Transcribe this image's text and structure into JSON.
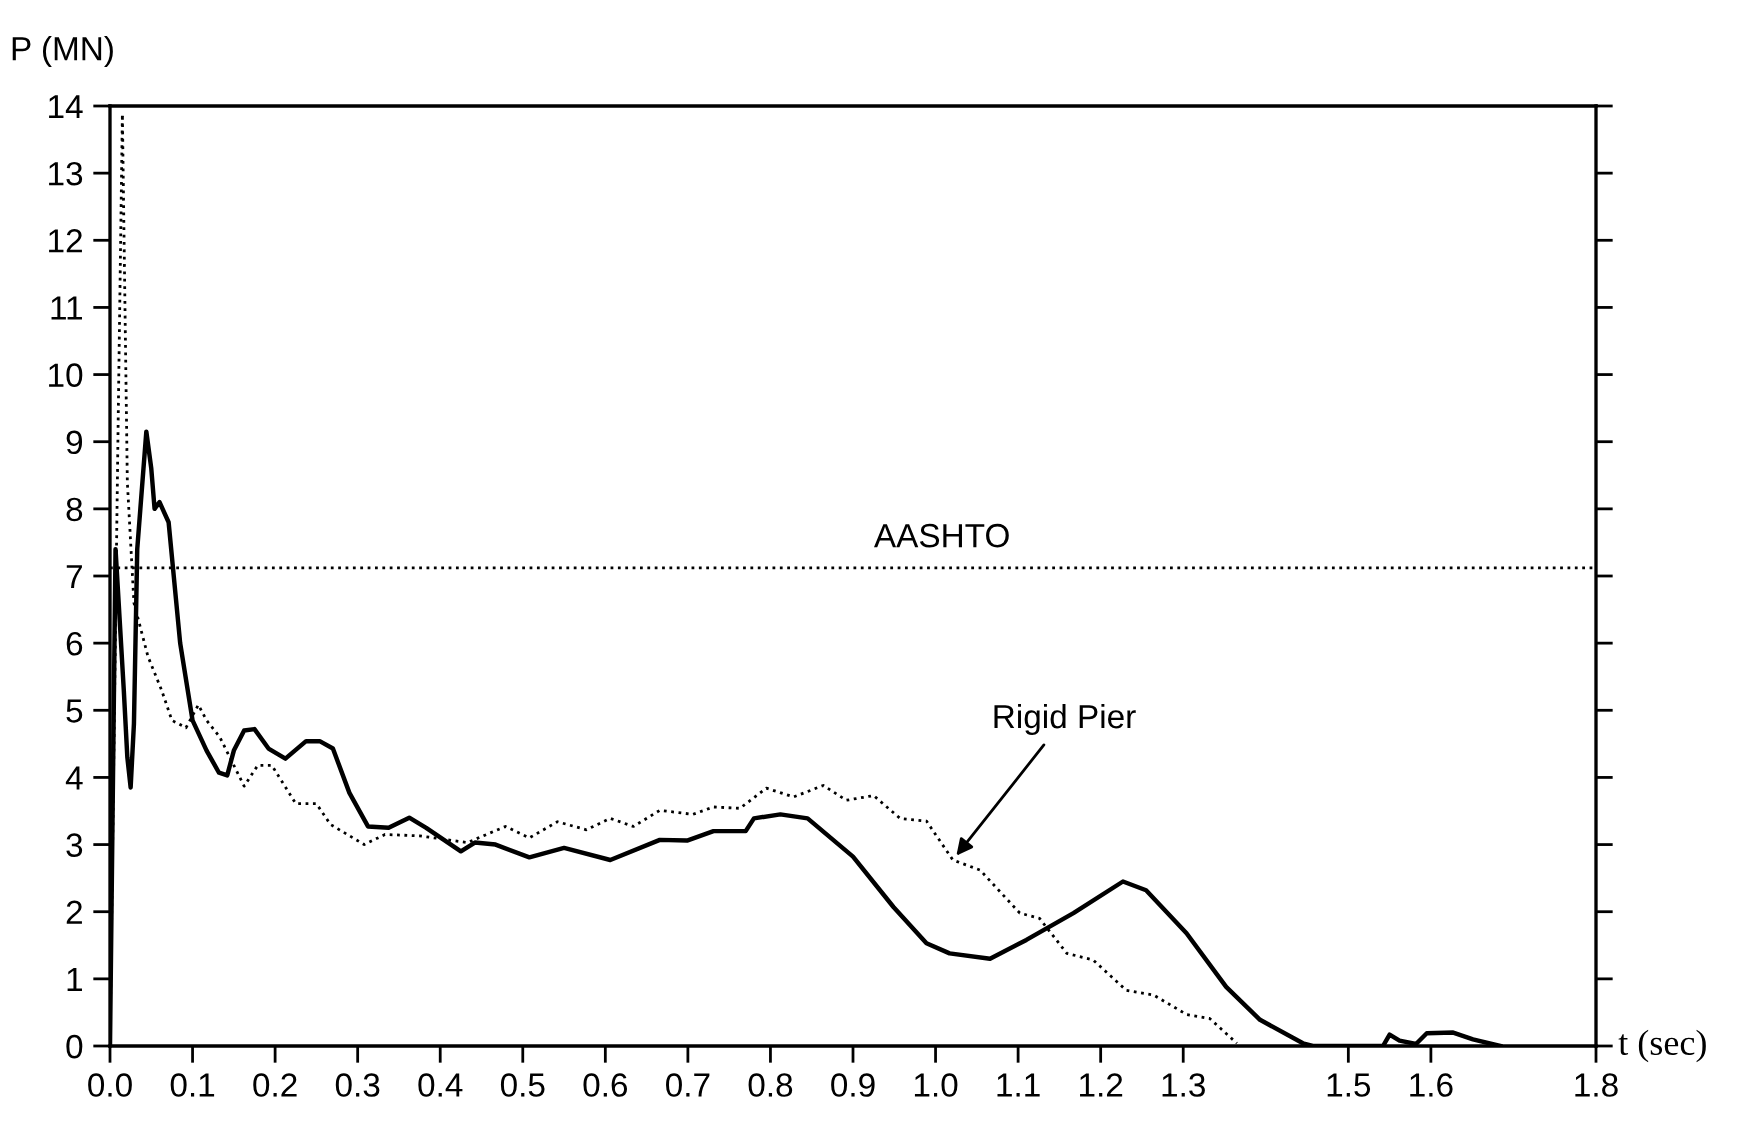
{
  "chart_data": {
    "type": "line",
    "xlabel": "t (sec)",
    "ylabel": "P (MN)",
    "xlim": [
      0,
      1.8
    ],
    "ylim": [
      0,
      14
    ],
    "xticks": [
      {
        "value": 0,
        "label": "0.0"
      },
      0.1,
      0.2,
      0.3,
      0.4,
      0.5,
      0.6,
      0.7,
      0.8,
      0.9,
      {
        "value": 1,
        "label": "1.0"
      },
      1.1,
      1.2,
      1.3,
      1.5,
      1.6,
      1.8
    ],
    "yticks": [
      0,
      1,
      2,
      3,
      4,
      5,
      6,
      7,
      8,
      9,
      10,
      11,
      12,
      13,
      14
    ],
    "grid": false,
    "legend": false,
    "marker": "none",
    "series": [
      {
        "color": "#000000",
        "line_style": "solid",
        "x": [
          0,
          0.0067,
          0.0167,
          0.021,
          0.025,
          0.029,
          0.033,
          0.044,
          0.05,
          0.054,
          0.06,
          0.071,
          0.085,
          0.1,
          0.117,
          0.132,
          0.142,
          0.15,
          0.1625,
          0.175,
          0.192,
          0.2125,
          0.2375,
          0.254,
          0.27,
          0.29,
          0.3125,
          0.3375,
          0.3625,
          0.383,
          0.425,
          0.442,
          0.467,
          0.508,
          0.55,
          0.606,
          0.666,
          0.699,
          0.731,
          0.77,
          0.78,
          0.812,
          0.845,
          0.9,
          0.949,
          0.989,
          1.017,
          1.066,
          1.11,
          1.167,
          1.227,
          1.255,
          1.304,
          1.352,
          1.393,
          1.445,
          1.457,
          1.542,
          1.55,
          1.562,
          1.582,
          1.595,
          1.627,
          1.651,
          1.684
        ],
        "values": [
          0,
          7.4,
          5.3,
          4.3,
          3.85,
          4.8,
          7.4,
          9.15,
          8.6,
          8.0,
          8.1,
          7.8,
          6.0,
          4.85,
          4.4,
          4.07,
          4.03,
          4.4,
          4.7,
          4.72,
          4.43,
          4.28,
          4.54,
          4.54,
          4.43,
          3.77,
          3.27,
          3.25,
          3.4,
          3.25,
          2.9,
          3.03,
          3.0,
          2.81,
          2.95,
          2.77,
          3.07,
          3.06,
          3.2,
          3.2,
          3.39,
          3.45,
          3.39,
          2.82,
          2.07,
          1.53,
          1.38,
          1.3,
          1.58,
          1.98,
          2.45,
          2.32,
          1.68,
          0.88,
          0.39,
          0.04,
          0,
          0,
          0.17,
          0.08,
          0.03,
          0.19,
          0.2,
          0.1,
          0
        ]
      },
      {
        "color": "#000000",
        "line_style": "dotted",
        "x": [
          0,
          0.01,
          0.015,
          0.021,
          0.029,
          0.046,
          0.0625,
          0.075,
          0.092,
          0.107,
          0.117,
          0.133,
          0.15,
          0.1625,
          0.179,
          0.196,
          0.225,
          0.25,
          0.267,
          0.308,
          0.333,
          0.375,
          0.433,
          0.479,
          0.508,
          0.542,
          0.577,
          0.606,
          0.634,
          0.666,
          0.706,
          0.731,
          0.763,
          0.795,
          0.828,
          0.864,
          0.892,
          0.925,
          0.957,
          0.989,
          1.021,
          1.054,
          1.102,
          1.126,
          1.159,
          1.191,
          1.231,
          1.264,
          1.304,
          1.332,
          1.365
        ],
        "values": [
          0,
          9.4,
          13.88,
          8.4,
          6.6,
          5.8,
          5.3,
          4.85,
          4.74,
          5.08,
          4.85,
          4.6,
          4.18,
          3.87,
          4.18,
          4.18,
          3.61,
          3.61,
          3.3,
          3.0,
          3.15,
          3.13,
          3.03,
          3.27,
          3.1,
          3.34,
          3.22,
          3.39,
          3.27,
          3.51,
          3.45,
          3.56,
          3.54,
          3.84,
          3.71,
          3.88,
          3.66,
          3.73,
          3.39,
          3.35,
          2.77,
          2.62,
          1.98,
          1.9,
          1.38,
          1.28,
          0.83,
          0.76,
          0.47,
          0.41,
          0.04
        ]
      }
    ],
    "ref_lines": [
      {
        "axis": "y",
        "value": 7.12,
        "label": "AASHTO",
        "color": "#000000",
        "line_style": "dotted"
      }
    ],
    "annotations": [
      {
        "text": "Rigid Pier",
        "x": 1.021,
        "y": 2.77
      }
    ]
  }
}
